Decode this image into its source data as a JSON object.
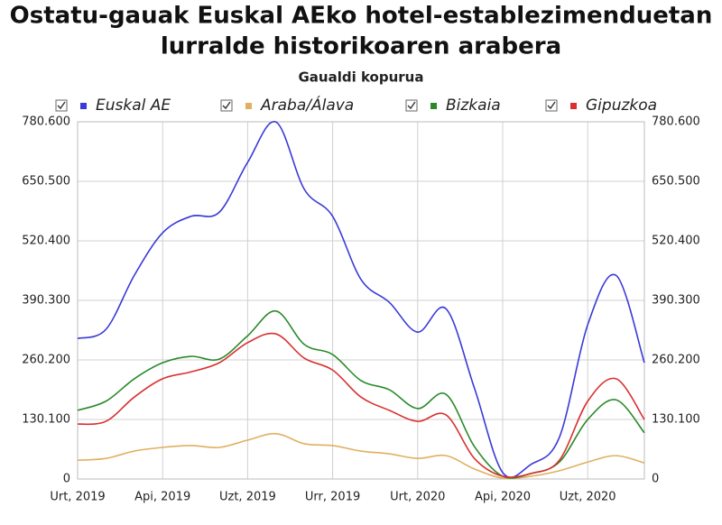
{
  "chart_data": {
    "type": "line",
    "title": [
      "Ostatu-gauak Euskal AEko hotel-establezimenduetan",
      "lurralde historikoaren arabera"
    ],
    "subtitle": "Gaualdi kopurua",
    "categories": [
      "Urt, 2019",
      null,
      null,
      "Api, 2019",
      null,
      null,
      "Uzt, 2019",
      null,
      null,
      "Urr, 2019",
      null,
      null,
      "Urt, 2020",
      null,
      null,
      "Api, 2020",
      null,
      null,
      "Uzt, 2020",
      null,
      null
    ],
    "series": [
      {
        "name": "Euskal AE",
        "color": "#3a3ad8",
        "values": [
          307000,
          327000,
          445000,
          538000,
          574000,
          583000,
          692000,
          780000,
          633000,
          574000,
          436000,
          386000,
          321000,
          372000,
          199000,
          14000,
          32000,
          91000,
          337000,
          445000,
          254000
        ]
      },
      {
        "name": "Araba/Álava",
        "color": "#e0b060",
        "values": [
          41000,
          45000,
          61000,
          69000,
          73000,
          69000,
          85000,
          99000,
          77000,
          73000,
          61000,
          55000,
          45000,
          51000,
          22000,
          2000,
          6000,
          18000,
          37000,
          51000,
          35000
        ]
      },
      {
        "name": "Bizkaia",
        "color": "#2a8a2a",
        "values": [
          150000,
          170000,
          219000,
          254000,
          268000,
          262000,
          313000,
          367000,
          294000,
          272000,
          215000,
          195000,
          154000,
          185000,
          71000,
          6000,
          12000,
          37000,
          130000,
          173000,
          101000
        ]
      },
      {
        "name": "Gipuzkoa",
        "color": "#d83030",
        "values": [
          120000,
          126000,
          179000,
          219000,
          234000,
          254000,
          298000,
          317000,
          264000,
          238000,
          179000,
          150000,
          126000,
          140000,
          45000,
          6000,
          12000,
          41000,
          170000,
          219000,
          130000
        ]
      }
    ],
    "ylim": [
      0,
      780600
    ],
    "yticks": [
      0,
      {
        "value": 130100,
        "label": "130.100"
      },
      {
        "value": 260200,
        "label": "260.200"
      },
      {
        "value": 390300,
        "label": "390.300"
      },
      {
        "value": 520400,
        "label": "520.400"
      },
      {
        "value": 650500,
        "label": "650.500"
      },
      {
        "value": 780600,
        "label": "780.600"
      }
    ],
    "grid": true
  }
}
